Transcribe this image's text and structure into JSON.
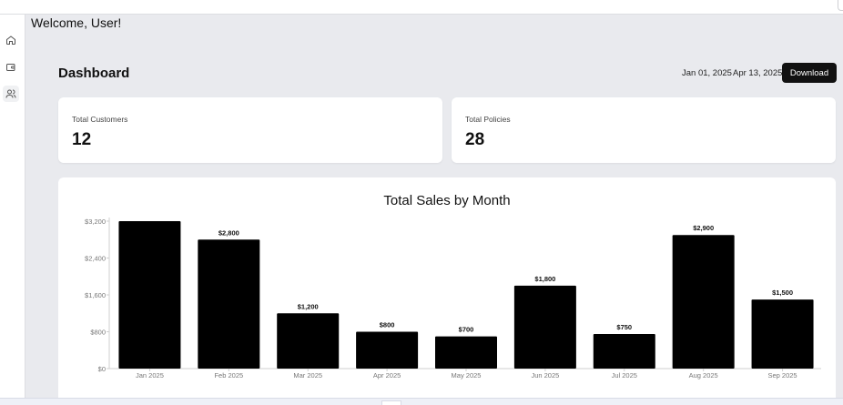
{
  "welcome": "Welcome, User!",
  "sidebar": {
    "items": [
      {
        "name": "home-icon",
        "active": false
      },
      {
        "name": "wallet-icon",
        "active": false
      },
      {
        "name": "users-icon",
        "active": true
      }
    ]
  },
  "header": {
    "title": "Dashboard",
    "date_from": "Jan 01, 2025",
    "date_to": "Apr 13, 2025",
    "download_label": "Download"
  },
  "stats": [
    {
      "label": "Total Customers",
      "value": "12"
    },
    {
      "label": "Total Policies",
      "value": "28"
    }
  ],
  "chart_data": {
    "type": "bar",
    "title": "Total Sales by Month",
    "categories": [
      "Jan 2025",
      "Feb 2025",
      "Mar 2025",
      "Apr 2025",
      "May 2025",
      "Jun 2025",
      "Jul 2025",
      "Aug 2025",
      "Sep 2025"
    ],
    "values": [
      3200,
      2800,
      1200,
      800,
      700,
      1800,
      750,
      2900,
      1500
    ],
    "data_labels": [
      "",
      "$2,800",
      "$1,200",
      "$800",
      "$700",
      "$1,800",
      "$750",
      "$2,900",
      "$1,500"
    ],
    "y_ticks": [
      0,
      800,
      1600,
      2400,
      3200
    ],
    "y_tick_labels": [
      "$0",
      "$800",
      "$1,600",
      "$2,400",
      "$3,200"
    ],
    "ylim": [
      0,
      3200
    ],
    "bar_color": "#000000",
    "grid": false
  }
}
